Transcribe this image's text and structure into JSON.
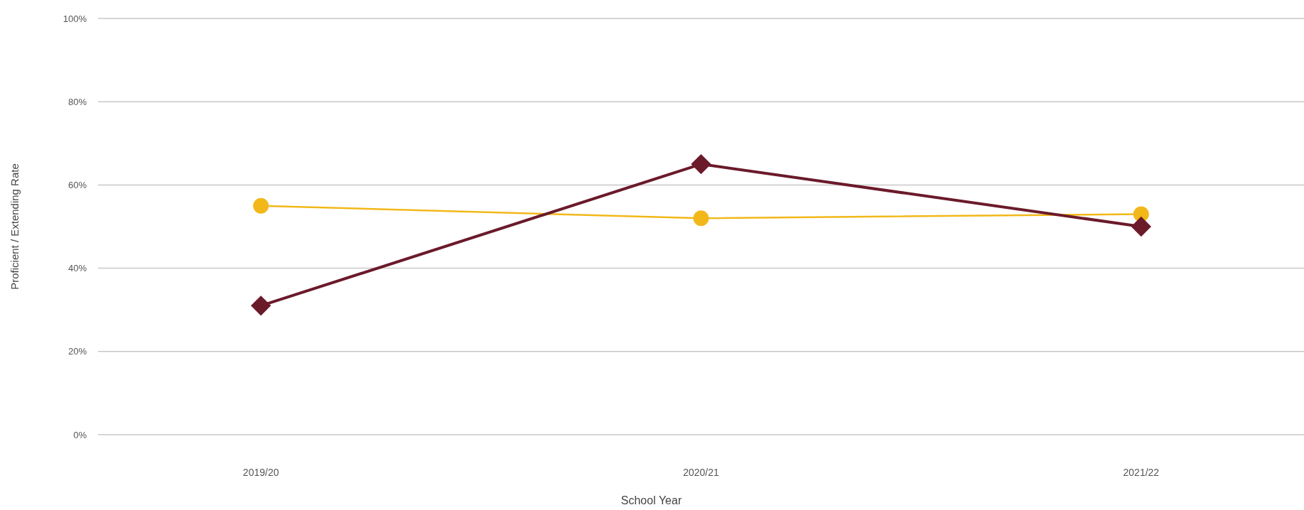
{
  "chart_data": {
    "type": "line",
    "xlabel": "School Year",
    "ylabel": "Proficient / Extending Rate",
    "categories": [
      "2019/20",
      "2020/21",
      "2021/22"
    ],
    "series": [
      {
        "color": "#f2b81a",
        "values": [
          55,
          52,
          53
        ],
        "marker": "circle"
      },
      {
        "color": "#6b1a2a",
        "values": [
          31,
          65,
          50
        ],
        "marker": "diamond"
      }
    ],
    "ylim": [
      0,
      100
    ],
    "yticks": [
      {
        "value": 0,
        "label": "0%"
      },
      {
        "value": 20,
        "label": "20%"
      },
      {
        "value": 40,
        "label": "40%"
      },
      {
        "value": 60,
        "label": "60%"
      },
      {
        "value": 80,
        "label": "80%"
      },
      {
        "value": 100,
        "label": "100%"
      }
    ],
    "grid": "y",
    "line_style": "solid"
  }
}
